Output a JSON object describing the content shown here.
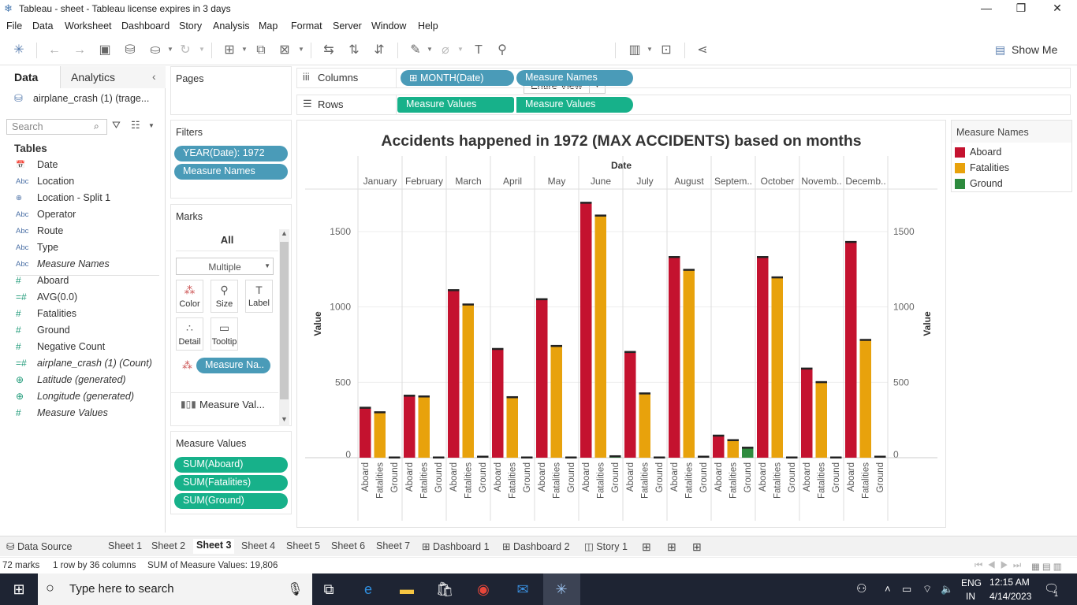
{
  "window": {
    "title": "Tableau - sheet - Tableau license expires in 3 days"
  },
  "menu": [
    "File",
    "Data",
    "Worksheet",
    "Dashboard",
    "Story",
    "Analysis",
    "Map",
    "Format",
    "Server",
    "Window",
    "Help"
  ],
  "toolbar": {
    "view_select": "Entire View",
    "show_me": "Show Me"
  },
  "datapane": {
    "tab_data": "Data",
    "tab_analytics": "Analytics",
    "datasource": "airplane_crash (1) (trage...",
    "search_placeholder": "Search",
    "tables_header": "Tables",
    "fields": [
      {
        "icon": "calendar-icon",
        "glyph": "📅",
        "name": "Date",
        "kind": "dim",
        "italic": false
      },
      {
        "icon": "abc-icon",
        "glyph": "Abc",
        "name": "Location",
        "kind": "dim",
        "italic": false
      },
      {
        "icon": "globe-icon",
        "glyph": "⊕",
        "name": "Location - Split 1",
        "kind": "dim",
        "italic": false
      },
      {
        "icon": "abc-icon",
        "glyph": "Abc",
        "name": "Operator",
        "kind": "dim",
        "italic": false
      },
      {
        "icon": "abc-icon",
        "glyph": "Abc",
        "name": "Route",
        "kind": "dim",
        "italic": false
      },
      {
        "icon": "abc-icon",
        "glyph": "Abc",
        "name": "Type",
        "kind": "dim",
        "italic": false
      },
      {
        "icon": "abc-icon",
        "glyph": "Abc",
        "name": "Measure Names",
        "kind": "dim",
        "italic": true
      },
      {
        "icon": "hash-icon",
        "glyph": "#",
        "name": "Aboard",
        "kind": "measure",
        "italic": false
      },
      {
        "icon": "calc-hash-icon",
        "glyph": "=#",
        "name": "AVG(0.0)",
        "kind": "measure",
        "italic": false
      },
      {
        "icon": "hash-icon",
        "glyph": "#",
        "name": "Fatalities",
        "kind": "measure",
        "italic": false
      },
      {
        "icon": "hash-icon",
        "glyph": "#",
        "name": "Ground",
        "kind": "measure",
        "italic": false
      },
      {
        "icon": "hash-icon",
        "glyph": "#",
        "name": "Negative Count",
        "kind": "measure",
        "italic": false
      },
      {
        "icon": "hash-icon",
        "glyph": "=#",
        "name": "airplane_crash (1) (Count)",
        "kind": "measure",
        "italic": true
      },
      {
        "icon": "globe-icon",
        "glyph": "⊕",
        "name": "Latitude (generated)",
        "kind": "measure",
        "italic": true
      },
      {
        "icon": "globe-icon",
        "glyph": "⊕",
        "name": "Longitude (generated)",
        "kind": "measure",
        "italic": true
      },
      {
        "icon": "hash-icon",
        "glyph": "#",
        "name": "Measure Values",
        "kind": "measure",
        "italic": true
      }
    ]
  },
  "shelves": {
    "pages": "Pages",
    "filters": "Filters",
    "filter_pills": [
      "YEAR(Date): 1972",
      "Measure Names"
    ],
    "marks": "Marks",
    "marks_all": "All",
    "mark_type": "Multiple",
    "mark_buttons": [
      {
        "icon": "color-icon",
        "glyph": "⁂",
        "label": "Color"
      },
      {
        "icon": "size-icon",
        "glyph": "⚲",
        "label": "Size"
      },
      {
        "icon": "label-icon",
        "glyph": "T",
        "label": "Label"
      },
      {
        "icon": "detail-icon",
        "glyph": "∴",
        "label": "Detail"
      },
      {
        "icon": "tooltip-icon",
        "glyph": "▭",
        "label": "Tooltip"
      }
    ],
    "marks_color_pill": "Measure Na..",
    "marks_measure_values": "Measure Val...",
    "measure_values_title": "Measure Values",
    "measure_values_pills": [
      "SUM(Aboard)",
      "SUM(Fatalities)",
      "SUM(Ground)"
    ],
    "columns_label": "Columns",
    "columns_pills": [
      "MONTH(Date)",
      "Measure Names"
    ],
    "rows_label": "Rows",
    "rows_pills": [
      "Measure Values",
      "Measure Values"
    ]
  },
  "legend": {
    "title": "Measure Names",
    "items": [
      {
        "label": "Aboard",
        "color": "#c4122f"
      },
      {
        "label": "Fatalities",
        "color": "#e8a20c"
      },
      {
        "label": "Ground",
        "color": "#2e8b3e"
      }
    ]
  },
  "chart_data": {
    "type": "bar",
    "title": "Accidents happened in 1972  (MAX ACCIDENTS) based on months",
    "column_header": "Date",
    "ylabel": "Value",
    "ylim": [
      0,
      1700
    ],
    "yticks": [
      0,
      500,
      1000,
      1500
    ],
    "categories": [
      "January",
      "February",
      "March",
      "April",
      "May",
      "June",
      "July",
      "August",
      "Septem..",
      "October",
      "Novemb..",
      "Decemb.."
    ],
    "sub_categories": [
      "Aboard",
      "Fatalities",
      "Ground"
    ],
    "series": [
      {
        "name": "Aboard",
        "color": "#c4122f",
        "values": [
          330,
          410,
          1110,
          720,
          1050,
          1690,
          700,
          1330,
          145,
          1330,
          590,
          1430
        ]
      },
      {
        "name": "Fatalities",
        "color": "#e8a20c",
        "values": [
          300,
          405,
          1015,
          400,
          740,
          1605,
          425,
          1245,
          115,
          1195,
          500,
          780
        ]
      },
      {
        "name": "Ground",
        "color": "#2e8b3e",
        "values": [
          0,
          0,
          3,
          0,
          0,
          8,
          0,
          2,
          65,
          0,
          0,
          3
        ]
      }
    ]
  },
  "sheet_tabs": {
    "datasource": "Data Source",
    "tabs": [
      "Sheet 1",
      "Sheet 2",
      "Sheet 3",
      "Sheet 4",
      "Sheet 5",
      "Sheet 6",
      "Sheet 7",
      "Dashboard 1",
      "Dashboard 2",
      "Story 1"
    ],
    "active": "Sheet 3"
  },
  "status": {
    "marks": "72 marks",
    "rows_cols": "1 row by 36 columns",
    "sum": "SUM of Measure Values: 19,806"
  },
  "taskbar": {
    "search_placeholder": "Type here to search",
    "lang1": "ENG",
    "lang2": "IN",
    "time": "12:15 AM",
    "date": "4/14/2023",
    "notif": "1"
  }
}
